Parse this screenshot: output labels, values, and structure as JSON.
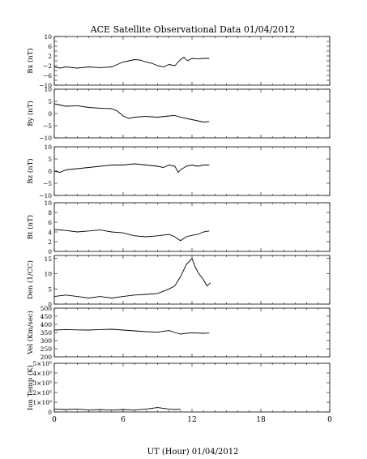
{
  "title": "ACE Satellite Observational Data   01/04/2012",
  "xlabel": "UT (Hour)  01/04/2012",
  "x_tick_labels": [
    "0",
    "6",
    "12",
    "18",
    "0"
  ],
  "colors": {
    "line": "#000000",
    "background": "#ffffff"
  },
  "chart_data": [
    {
      "type": "line",
      "ylabel": "Bx (nT)",
      "ylim": [
        -10,
        10
      ],
      "yticks": [
        -10,
        -8,
        -6,
        -4,
        -2,
        0,
        2,
        4,
        6,
        8,
        10
      ],
      "ytick_labels": [
        "−10",
        "",
        "−6",
        "",
        "−2",
        "",
        "2",
        "",
        "6",
        "",
        "10"
      ],
      "x": [
        0,
        0.5,
        1,
        2,
        3,
        4,
        5,
        5.5,
        6,
        6.5,
        7,
        7.5,
        8,
        8.5,
        9,
        9.5,
        10,
        10.5,
        11,
        11.3,
        11.6,
        12,
        12.5,
        13,
        13.5
      ],
      "values": [
        -2.5,
        -3,
        -2.5,
        -3,
        -2.5,
        -2.8,
        -2.5,
        -1.5,
        -0.5,
        0,
        0.5,
        0.3,
        -0.5,
        -1,
        -2,
        -2.5,
        -1.5,
        -2,
        0.5,
        1.5,
        0,
        1,
        0.8,
        1,
        1
      ]
    },
    {
      "type": "line",
      "ylabel": "By (nT)",
      "ylim": [
        -10,
        10
      ],
      "yticks": [
        -10,
        -5,
        0,
        5,
        10
      ],
      "ytick_labels": [
        "−10",
        "−5",
        "0",
        "5",
        "10"
      ],
      "x": [
        0,
        0.5,
        1,
        2,
        3,
        4,
        5,
        5.5,
        6,
        6.5,
        7,
        8,
        9,
        10,
        10.5,
        11,
        11.5,
        12,
        12.5,
        13,
        13.5
      ],
      "values": [
        4,
        3.5,
        3,
        3.2,
        2.5,
        2.2,
        2,
        1,
        -1,
        -2,
        -1.5,
        -1.2,
        -1.5,
        -1,
        -0.8,
        -1.5,
        -2,
        -2.5,
        -3,
        -3.5,
        -3.3
      ]
    },
    {
      "type": "line",
      "ylabel": "Bz (nT)",
      "ylim": [
        -10,
        10
      ],
      "yticks": [
        -10,
        -5,
        0,
        5,
        10
      ],
      "ytick_labels": [
        "−10",
        "−5",
        "0",
        "5",
        "10"
      ],
      "x": [
        0,
        0.5,
        1,
        2,
        3,
        4,
        5,
        6,
        7,
        8,
        9,
        9.5,
        10,
        10.5,
        10.8,
        11,
        11.5,
        12,
        12.5,
        13,
        13.5
      ],
      "values": [
        0,
        -0.5,
        0.5,
        1,
        1.5,
        2,
        2.5,
        2.5,
        3,
        2.5,
        2,
        1.5,
        2.5,
        2,
        -0.5,
        0.5,
        2,
        2.5,
        2,
        2.5,
        2.5
      ]
    },
    {
      "type": "line",
      "ylabel": "Bt (nT)",
      "ylim": [
        0,
        10
      ],
      "yticks": [
        0,
        2,
        4,
        6,
        8,
        10
      ],
      "ytick_labels": [
        "0",
        "2",
        "4",
        "6",
        "8",
        "10"
      ],
      "x": [
        0,
        1,
        2,
        3,
        4,
        5,
        6,
        7,
        8,
        9,
        10,
        10.5,
        11,
        11.5,
        12,
        12.5,
        13,
        13.5
      ],
      "values": [
        4.5,
        4.3,
        4,
        4.2,
        4.4,
        4,
        3.8,
        3.2,
        3,
        3.2,
        3.5,
        3,
        2.2,
        3,
        3.3,
        3.5,
        4,
        4.2
      ]
    },
    {
      "type": "line",
      "ylabel": "Den (1/CC)",
      "ylim": [
        0,
        16
      ],
      "yticks": [
        0,
        5,
        10,
        15
      ],
      "ytick_labels": [
        "0",
        "5",
        "10",
        "15"
      ],
      "x": [
        0,
        1,
        2,
        3,
        4,
        5,
        6,
        7,
        8,
        9,
        10,
        10.5,
        11,
        11.5,
        12,
        12.3,
        12.6,
        13,
        13.3,
        13.6
      ],
      "values": [
        2.5,
        3,
        2.5,
        2,
        2.5,
        2,
        2.5,
        3,
        3.2,
        3.5,
        5,
        6,
        9,
        13,
        15,
        12,
        10,
        8,
        6,
        7
      ]
    },
    {
      "type": "line",
      "ylabel": "Vel (Km/sec)",
      "ylim": [
        200,
        500
      ],
      "yticks": [
        200,
        250,
        300,
        350,
        400,
        450,
        500
      ],
      "ytick_labels": [
        "200",
        "250",
        "300",
        "350",
        "400",
        "450",
        "500"
      ],
      "x": [
        0,
        1,
        2,
        3,
        4,
        5,
        6,
        7,
        8,
        9,
        10,
        10.5,
        11,
        11.5,
        12,
        13,
        13.5
      ],
      "values": [
        365,
        368,
        366,
        365,
        368,
        370,
        365,
        360,
        355,
        352,
        362,
        350,
        340,
        345,
        348,
        345,
        347
      ]
    },
    {
      "type": "line",
      "ylabel": "Ion Temp (K)",
      "ylim": [
        0,
        500000
      ],
      "yticks": [
        0,
        100000,
        200000,
        300000,
        400000,
        500000
      ],
      "ytick_labels": [
        "0",
        "1×10⁵",
        "2×10⁵",
        "3×10⁵",
        "4×10⁵",
        "5×10⁵"
      ],
      "x": [
        0,
        1,
        2,
        3,
        4,
        5,
        6,
        7,
        8,
        9,
        10,
        10.5,
        11
      ],
      "values": [
        30000,
        25000,
        30000,
        20000,
        25000,
        20000,
        25000,
        20000,
        30000,
        45000,
        30000,
        25000,
        30000
      ]
    }
  ]
}
